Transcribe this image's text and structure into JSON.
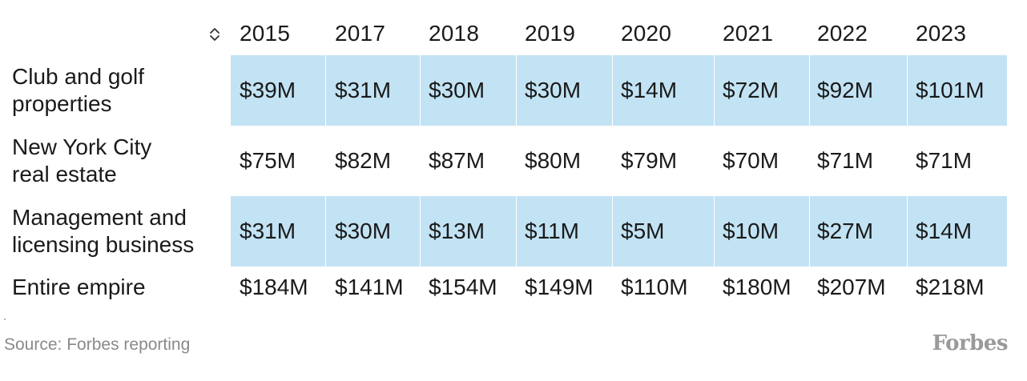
{
  "chart_data": {
    "type": "table",
    "columns": [
      "2015",
      "2017",
      "2018",
      "2019",
      "2020",
      "2021",
      "2022",
      "2023"
    ],
    "rows": [
      {
        "label_lines": [
          "Club and golf",
          "properties"
        ],
        "values": [
          "$39M",
          "$31M",
          "$30M",
          "$30M",
          "$14M",
          "$72M",
          "$92M",
          "$101M"
        ],
        "highlighted": true
      },
      {
        "label_lines": [
          "New York City",
          "real estate"
        ],
        "values": [
          "$75M",
          "$82M",
          "$87M",
          "$80M",
          "$79M",
          "$70M",
          "$71M",
          "$71M"
        ],
        "highlighted": false
      },
      {
        "label_lines": [
          "Management and",
          "licensing business"
        ],
        "values": [
          "$31M",
          "$30M",
          "$13M",
          "$11M",
          "$5M",
          "$10M",
          "$27M",
          "$14M"
        ],
        "highlighted": true
      },
      {
        "label_lines": [
          "Entire empire"
        ],
        "values": [
          "$184M",
          "$141M",
          "$154M",
          "$149M",
          "$110M",
          "$180M",
          "$207M",
          "$218M"
        ],
        "highlighted": false
      }
    ],
    "highlight_color": "#c2e3f4"
  },
  "footer": {
    "source": "Source: Forbes reporting",
    "logo": "Forbes"
  },
  "icons": {
    "sort": "sort-toggle-icon"
  },
  "colors": {
    "text": "#1a1a1a",
    "source_text": "#8a8a8a",
    "logo": "#9a9a9a"
  }
}
